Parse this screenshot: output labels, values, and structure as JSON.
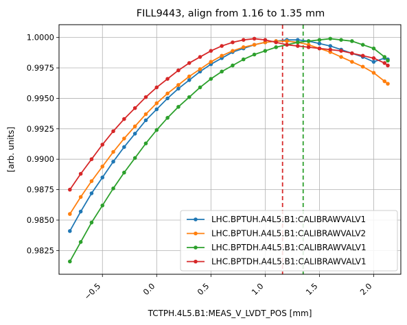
{
  "chart_data": {
    "type": "line",
    "title": "FILL9443, align from 1.16 to 1.35 mm",
    "xlabel": "TCTPH.4L5.B1:MEAS_V_LVDT_POS [mm]",
    "ylabel": "[arb. units]",
    "xlim": [
      -0.9,
      2.25
    ],
    "ylim": [
      0.98055,
      1.00105
    ],
    "x_ticks": [
      -0.5,
      0.0,
      0.5,
      1.0,
      1.5,
      2.0
    ],
    "x_tick_labels": [
      "−0.5",
      "0.0",
      "0.5",
      "1.0",
      "1.5",
      "2.0"
    ],
    "y_ticks": [
      0.9825,
      0.985,
      0.9875,
      0.99,
      0.9925,
      0.995,
      0.9975,
      1.0
    ],
    "y_tick_labels": [
      "0.9825",
      "0.9850",
      "0.9875",
      "0.9900",
      "0.9925",
      "0.9950",
      "0.9975",
      "1.0000"
    ],
    "grid": true,
    "legend_position": "lower-right",
    "vlines": [
      {
        "x": 1.16,
        "color": "#d62728",
        "style": "dashed"
      },
      {
        "x": 1.35,
        "color": "#2ca02c",
        "style": "dashed"
      }
    ],
    "series": [
      {
        "name": "LHC.BPTUH.A4L5.B1:CALIBRAWVALV1",
        "color": "#1f77b4",
        "x": [
          -0.8,
          -0.7,
          -0.6,
          -0.5,
          -0.4,
          -0.3,
          -0.2,
          -0.1,
          0.0,
          0.1,
          0.2,
          0.3,
          0.4,
          0.5,
          0.6,
          0.7,
          0.8,
          0.9,
          1.0,
          1.1,
          1.2,
          1.3,
          1.4,
          1.5,
          1.6,
          1.7,
          1.8,
          1.9,
          2.0,
          2.1,
          2.13
        ],
        "y": [
          0.9841,
          0.9857,
          0.9872,
          0.9885,
          0.9898,
          0.991,
          0.9921,
          0.9932,
          0.9941,
          0.995,
          0.9958,
          0.9965,
          0.9972,
          0.9978,
          0.9983,
          0.9988,
          0.9991,
          0.9994,
          0.9996,
          0.9997,
          0.9998,
          0.9998,
          0.9997,
          0.9995,
          0.9993,
          0.999,
          0.9987,
          0.9984,
          0.998,
          0.9983,
          0.9982
        ]
      },
      {
        "name": "LHC.BPTUH.A4L5.B1:CALIBRAWVALV2",
        "color": "#ff7f0e",
        "x": [
          -0.8,
          -0.7,
          -0.6,
          -0.5,
          -0.4,
          -0.3,
          -0.2,
          -0.1,
          0.0,
          0.1,
          0.2,
          0.3,
          0.4,
          0.5,
          0.6,
          0.7,
          0.8,
          0.9,
          1.0,
          1.1,
          1.2,
          1.3,
          1.4,
          1.5,
          1.6,
          1.7,
          1.8,
          1.9,
          2.0,
          2.1,
          2.13
        ],
        "y": [
          0.9855,
          0.9869,
          0.9882,
          0.9894,
          0.9906,
          0.9917,
          0.9927,
          0.9937,
          0.9946,
          0.9954,
          0.9961,
          0.9968,
          0.9974,
          0.998,
          0.9985,
          0.9989,
          0.9992,
          0.9994,
          0.9996,
          0.9997,
          0.9997,
          0.9996,
          0.9994,
          0.9991,
          0.9988,
          0.9984,
          0.998,
          0.9976,
          0.9971,
          0.9964,
          0.9962
        ]
      },
      {
        "name": "LHC.BPTDH.A4L5.B1:CALIBRAWVALV1",
        "color": "#2ca02c",
        "x": [
          -0.8,
          -0.7,
          -0.6,
          -0.5,
          -0.4,
          -0.3,
          -0.2,
          -0.1,
          0.0,
          0.1,
          0.2,
          0.3,
          0.4,
          0.5,
          0.6,
          0.7,
          0.8,
          0.9,
          1.0,
          1.1,
          1.2,
          1.3,
          1.4,
          1.5,
          1.6,
          1.7,
          1.8,
          1.9,
          2.0,
          2.1,
          2.13
        ],
        "y": [
          0.9816,
          0.9832,
          0.9848,
          0.9862,
          0.9876,
          0.9889,
          0.9901,
          0.9913,
          0.9924,
          0.9934,
          0.9943,
          0.9951,
          0.9959,
          0.9966,
          0.9972,
          0.9977,
          0.9982,
          0.9986,
          0.9989,
          0.9992,
          0.9994,
          0.9996,
          0.9997,
          0.9998,
          0.9999,
          0.9998,
          0.9997,
          0.9994,
          0.9991,
          0.9984,
          0.9981
        ]
      },
      {
        "name": "LHC.BPTDH.A4L5.B1:CALIBRAWVALV1",
        "color": "#d62728",
        "x": [
          -0.8,
          -0.7,
          -0.6,
          -0.5,
          -0.4,
          -0.3,
          -0.2,
          -0.1,
          0.0,
          0.1,
          0.2,
          0.3,
          0.4,
          0.5,
          0.6,
          0.7,
          0.8,
          0.9,
          1.0,
          1.1,
          1.2,
          1.3,
          1.4,
          1.5,
          1.6,
          1.7,
          1.8,
          1.9,
          2.0,
          2.1,
          2.13
        ],
        "y": [
          0.9875,
          0.9888,
          0.99,
          0.9912,
          0.9923,
          0.9933,
          0.9942,
          0.9951,
          0.9959,
          0.9966,
          0.9973,
          0.9979,
          0.9984,
          0.9989,
          0.9993,
          0.9996,
          0.9998,
          0.9999,
          0.9998,
          0.9996,
          0.9994,
          0.9993,
          0.9992,
          0.9991,
          0.999,
          0.9989,
          0.9987,
          0.9985,
          0.9983,
          0.9979,
          0.9977
        ]
      }
    ]
  }
}
